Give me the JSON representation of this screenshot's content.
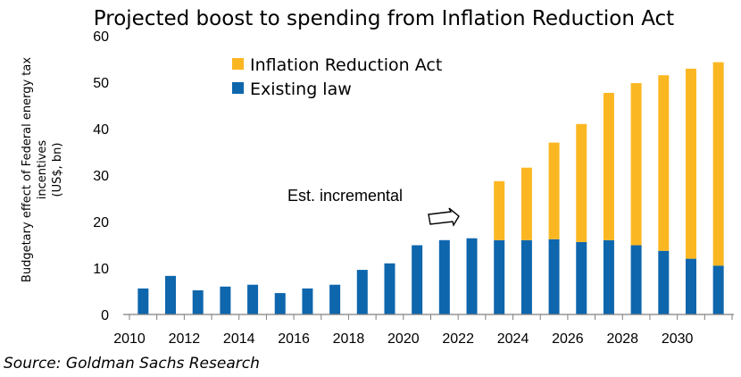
{
  "chart_data": {
    "type": "bar",
    "stacked": true,
    "title": "Projected boost to spending from Inflation Reduction Act",
    "ylabel_lines": [
      "Budgetary effect of Federal energy tax",
      "incentives",
      "(US$, bn)"
    ],
    "categories": [
      "2010",
      "2011",
      "2012",
      "2013",
      "2014",
      "2015",
      "2016",
      "2017",
      "2018",
      "2019",
      "2020",
      "2021",
      "2022",
      "2023",
      "2024",
      "2025",
      "2026",
      "2027",
      "2028",
      "2029",
      "2030",
      "2031"
    ],
    "x_tick_labels": [
      "2010",
      "2012",
      "2014",
      "2016",
      "2018",
      "2020",
      "2022",
      "2024",
      "2026",
      "2028",
      "2030"
    ],
    "y_ticks": [
      0,
      10,
      20,
      30,
      40,
      50,
      60
    ],
    "ylim": [
      0,
      60
    ],
    "series": [
      {
        "name": "Existing law",
        "color": "#0e66ad",
        "values": [
          5.6,
          8.3,
          5.2,
          6.0,
          6.4,
          4.6,
          5.6,
          6.4,
          9.6,
          11.0,
          14.9,
          16.0,
          16.4,
          16.0,
          16.0,
          16.2,
          15.6,
          16.0,
          14.9,
          13.7,
          12.0,
          10.5
        ]
      },
      {
        "name": "Inflation Reduction Act",
        "color": "#fbb722",
        "values": [
          0,
          0,
          0,
          0,
          0,
          0,
          0,
          0,
          0,
          0,
          0,
          0,
          0,
          12.7,
          15.6,
          20.8,
          25.4,
          31.7,
          34.9,
          37.8,
          40.9,
          43.8
        ]
      }
    ],
    "legend": [
      "Inflation Reduction Act",
      "Existing law"
    ],
    "legend_position": "top-center",
    "grid": false,
    "annotation": "Est. incremental",
    "source": "Source: Goldman Sachs Research"
  }
}
